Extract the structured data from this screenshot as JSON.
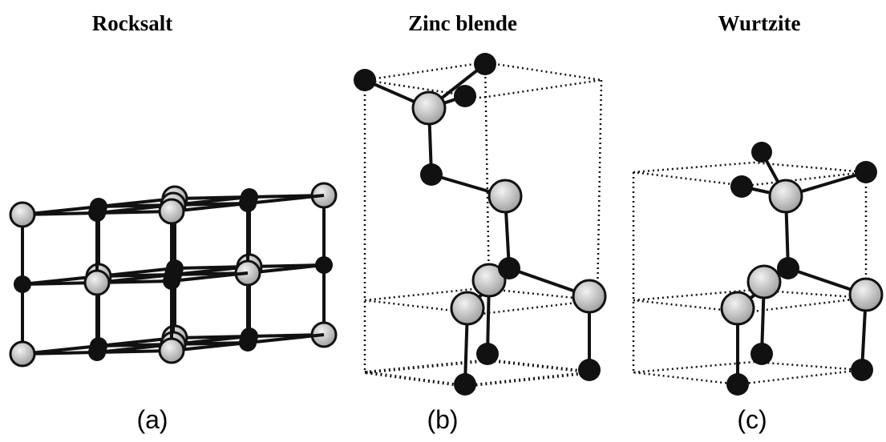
{
  "panels": [
    {
      "title": "Rocksalt",
      "label": "(a)"
    },
    {
      "title": "Zinc blende",
      "label": "(b)"
    },
    {
      "title": "Wurtzite",
      "label": "(c)"
    }
  ]
}
